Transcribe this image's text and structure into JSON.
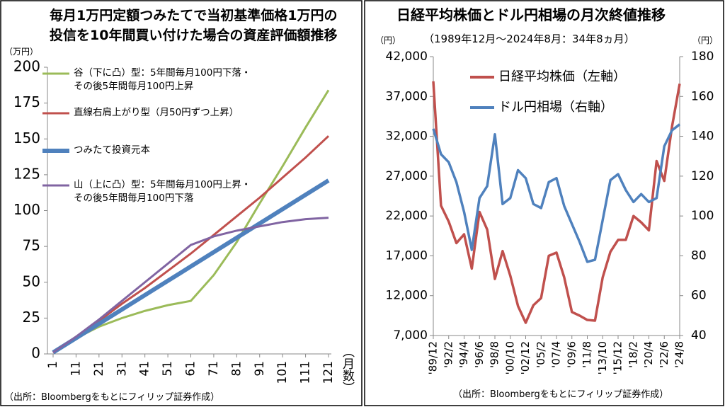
{
  "chart_data": [
    {
      "type": "line",
      "title": "毎月1万円定額つみたてで当初基準価格1万円の投信を10年間買い付けた場合の資産評価額推移",
      "y_unit": "（万円）",
      "x_label": "（月数）",
      "source": "（出所：Bloombergをもとにフィリップ証券作成）",
      "x": [
        1,
        11,
        21,
        31,
        41,
        51,
        61,
        71,
        81,
        91,
        101,
        111,
        121
      ],
      "xlim": [
        1,
        121
      ],
      "xticks": [
        1,
        11,
        21,
        31,
        41,
        51,
        61,
        71,
        81,
        91,
        101,
        111,
        121
      ],
      "ylim": [
        0,
        200
      ],
      "yticks": [
        0,
        25,
        50,
        75,
        100,
        125,
        150,
        175,
        200
      ],
      "grid": false,
      "series": [
        {
          "name": "谷（下に凸）型：5年間毎月100円下落・その後5年間毎月100円上昇",
          "color": "#9bbb59",
          "values": [
            1,
            11,
            19,
            25,
            30,
            34,
            37,
            55,
            78,
            105,
            131,
            158,
            184
          ]
        },
        {
          "name": "直線右肩上がり型（月50円ずつ上昇）",
          "color": "#c0504d",
          "values": [
            1,
            12,
            23,
            35,
            46,
            58,
            70,
            83,
            96,
            109,
            123,
            137,
            152
          ]
        },
        {
          "name": "つみたて投資元本",
          "color": "#4f81bd",
          "values": [
            1,
            11,
            21,
            31,
            41,
            51,
            61,
            71,
            81,
            91,
            101,
            111,
            121
          ]
        },
        {
          "name": "山（上に凸）型：5年間毎月100円上昇・その後5年間毎月100円下落",
          "color": "#8064a2",
          "values": [
            1,
            12,
            24,
            37,
            50,
            63,
            76,
            82,
            86,
            89,
            92,
            94,
            95
          ]
        }
      ]
    },
    {
      "type": "line",
      "title": "日経平均株価とドル円相場の月次終値推移",
      "subtitle": "（1989年12月～2024年8月：34年8ヵ月）",
      "y_unit": "（円）",
      "y2_unit": "（円）",
      "source": "（出所：Bloombergをもとにフィリップ証券作成）",
      "categories": [
        "'89/12",
        null,
        "'92/2",
        null,
        "'94/4",
        null,
        "'96/6",
        null,
        "'98/8",
        null,
        "'00/10",
        null,
        "'02/12",
        null,
        "'05/2",
        null,
        "'07/4",
        null,
        "'09/6",
        null,
        "'11/8",
        null,
        "'13/10",
        null,
        "'15/12",
        null,
        "'18/2",
        null,
        "'20/4",
        null,
        "'22/6",
        null,
        "'24/8"
      ],
      "ylim": [
        7000,
        42000
      ],
      "yticks": [
        {
          "value": 7000,
          "label": "7,000"
        },
        {
          "value": 12000,
          "label": "12,000"
        },
        {
          "value": 17000,
          "label": "17,000"
        },
        {
          "value": 22000,
          "label": "22,000"
        },
        {
          "value": 27000,
          "label": "27,000"
        },
        {
          "value": 32000,
          "label": "32,000"
        },
        {
          "value": 37000,
          "label": "37,000"
        },
        {
          "value": 42000,
          "label": "42,000"
        }
      ],
      "y2lim": [
        40,
        180
      ],
      "y2ticks": [
        40,
        60,
        80,
        100,
        120,
        140,
        160,
        180
      ],
      "grid": false,
      "series": [
        {
          "name": "日経平均株価（左軸）",
          "color": "#c0504d",
          "values": [
            38900,
            23300,
            21300,
            18600,
            19700,
            15400,
            22500,
            20300,
            14100,
            17600,
            14500,
            10700,
            8600,
            10800,
            11700,
            17000,
            17400,
            14300,
            9950,
            9500,
            8950,
            8870,
            14300,
            17500,
            19000,
            19000,
            22000,
            21200,
            20200,
            28900,
            26400,
            33200,
            38600
          ]
        },
        {
          "name": "ドル円相場（右軸）",
          "color": "#4f81bd",
          "axis": "y2",
          "values": [
            143.8,
            131,
            127,
            117,
            102,
            83,
            109,
            115,
            141,
            106,
            109,
            123,
            119,
            106,
            104,
            117,
            119,
            105,
            96,
            87,
            77,
            78,
            98,
            118,
            121,
            113,
            107,
            111,
            107,
            109,
            135,
            143,
            146
          ]
        }
      ]
    }
  ]
}
